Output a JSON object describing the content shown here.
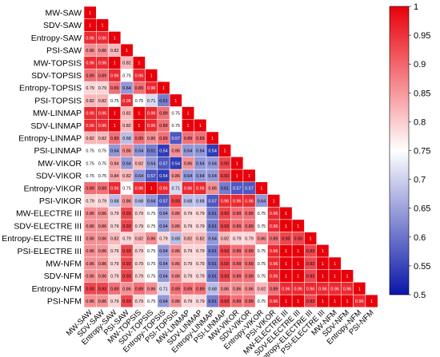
{
  "chart_data": {
    "type": "heatmap",
    "subtype": "lower-triangular correlation matrix",
    "labels": [
      "MW-SAW",
      "SDV-SAW",
      "Entropy-SAW",
      "PSI-SAW",
      "MW-TOPSIS",
      "SDV-TOPSIS",
      "Entropy-TOPSIS",
      "PSI-TOPSIS",
      "MW-LINMAP",
      "SDV-LINMAP",
      "Entropy-LINMAP",
      "PSI-LINMAP",
      "MW-VIKOR",
      "SDV-VIKOR",
      "Entropy-VIKOR",
      "PSI-VIKOR",
      "MW-ELECTRE III",
      "SDV-ELECTRE III",
      "Entropy-ELECTRE III",
      "PSI-ELECTRE III",
      "MW-NFM",
      "SDV-NFM",
      "Entropy-NFM",
      "PSI-NFM"
    ],
    "rows": [
      [
        1
      ],
      [
        1,
        1
      ],
      [
        0.96,
        0.96,
        1
      ],
      [
        0.86,
        0.86,
        0.82,
        1
      ],
      [
        0.96,
        0.96,
        1,
        0.82,
        1
      ],
      [
        0.89,
        0.89,
        0.96,
        0.75,
        0.96,
        1
      ],
      [
        0.79,
        0.79,
        0.89,
        0.64,
        0.89,
        0.96,
        1
      ],
      [
        0.82,
        0.82,
        0.75,
        0.96,
        0.75,
        0.71,
        0.61,
        1
      ],
      [
        0.96,
        0.96,
        1,
        0.82,
        1,
        0.96,
        0.89,
        0.75,
        1
      ],
      [
        0.96,
        0.96,
        1,
        0.82,
        1,
        0.96,
        0.89,
        0.75,
        1,
        1
      ],
      [
        0.82,
        0.82,
        0.89,
        0.68,
        0.89,
        0.86,
        0.89,
        0.57,
        0.89,
        0.89,
        1
      ],
      [
        0.75,
        0.75,
        0.64,
        0.86,
        0.64,
        0.61,
        0.54,
        0.86,
        0.64,
        0.64,
        0.54,
        1
      ],
      [
        0.75,
        0.75,
        0.84,
        0.64,
        0.82,
        0.64,
        0.57,
        0.54,
        0.86,
        0.64,
        0.64,
        0.93,
        1
      ],
      [
        0.75,
        0.75,
        0.84,
        0.82,
        0.64,
        0.57,
        0.54,
        0.86,
        0.64,
        0.64,
        0.64,
        0.93,
        1,
        1
      ],
      [
        0.89,
        0.89,
        0.96,
        0.75,
        0.96,
        1,
        0.96,
        0.71,
        0.96,
        0.96,
        0.86,
        0.61,
        0.57,
        0.57,
        1
      ],
      [
        0.79,
        0.79,
        0.68,
        0.86,
        0.68,
        0.64,
        0.57,
        0.93,
        0.68,
        0.68,
        0.57,
        0.96,
        0.96,
        0.96,
        0.64,
        1
      ],
      [
        0.86,
        0.86,
        0.79,
        0.93,
        0.79,
        0.75,
        0.64,
        0.86,
        0.79,
        0.79,
        0.61,
        0.93,
        0.89,
        0.89,
        0.75,
        0.96,
        1
      ],
      [
        0.86,
        0.86,
        0.79,
        0.93,
        0.79,
        0.75,
        0.64,
        0.86,
        0.79,
        0.79,
        0.61,
        0.93,
        0.89,
        0.89,
        0.75,
        0.96,
        1,
        1
      ],
      [
        0.86,
        0.86,
        0.82,
        0.79,
        0.82,
        0.86,
        0.79,
        0.68,
        0.82,
        0.82,
        0.64,
        0.82,
        0.79,
        0.79,
        0.86,
        0.89,
        0.93,
        0.93,
        1
      ],
      [
        0.86,
        0.86,
        0.79,
        0.93,
        0.79,
        0.75,
        0.64,
        0.86,
        0.79,
        0.79,
        0.61,
        0.93,
        0.89,
        0.89,
        0.75,
        0.96,
        1,
        1,
        0.93,
        1
      ],
      [
        0.86,
        0.86,
        0.79,
        0.93,
        0.79,
        0.75,
        0.64,
        0.86,
        0.79,
        0.79,
        0.61,
        0.93,
        0.89,
        0.89,
        0.75,
        0.96,
        1,
        1,
        0.93,
        1,
        1
      ],
      [
        0.86,
        0.86,
        0.79,
        0.93,
        0.79,
        0.75,
        0.64,
        0.86,
        0.79,
        0.79,
        0.61,
        0.93,
        0.89,
        0.89,
        0.75,
        0.96,
        1,
        1,
        0.93,
        1,
        1,
        1
      ],
      [
        0.93,
        0.93,
        0.89,
        0.86,
        0.89,
        0.86,
        0.71,
        0.89,
        0.89,
        0.89,
        0.68,
        0.86,
        0.86,
        0.86,
        0.82,
        0.89,
        0.96,
        0.96,
        0.96,
        0.96,
        0.96,
        0.96,
        1
      ],
      [
        0.86,
        0.86,
        0.79,
        0.93,
        0.79,
        0.75,
        0.64,
        0.86,
        0.79,
        0.79,
        0.61,
        0.93,
        0.89,
        0.89,
        0.75,
        0.96,
        1,
        1,
        0.93,
        1,
        1,
        1,
        0.96,
        1
      ]
    ],
    "colorbar": {
      "range": [
        0.5,
        1
      ],
      "ticks": [
        "1",
        "0.95",
        "0.9",
        "0.85",
        "0.8",
        "0.75",
        "0.7",
        "0.65",
        "0.6",
        "0.55",
        "0.5"
      ],
      "colors": {
        "low": "#0a16a8",
        "mid": "#ffffff",
        "high": "#e8000a"
      }
    }
  }
}
